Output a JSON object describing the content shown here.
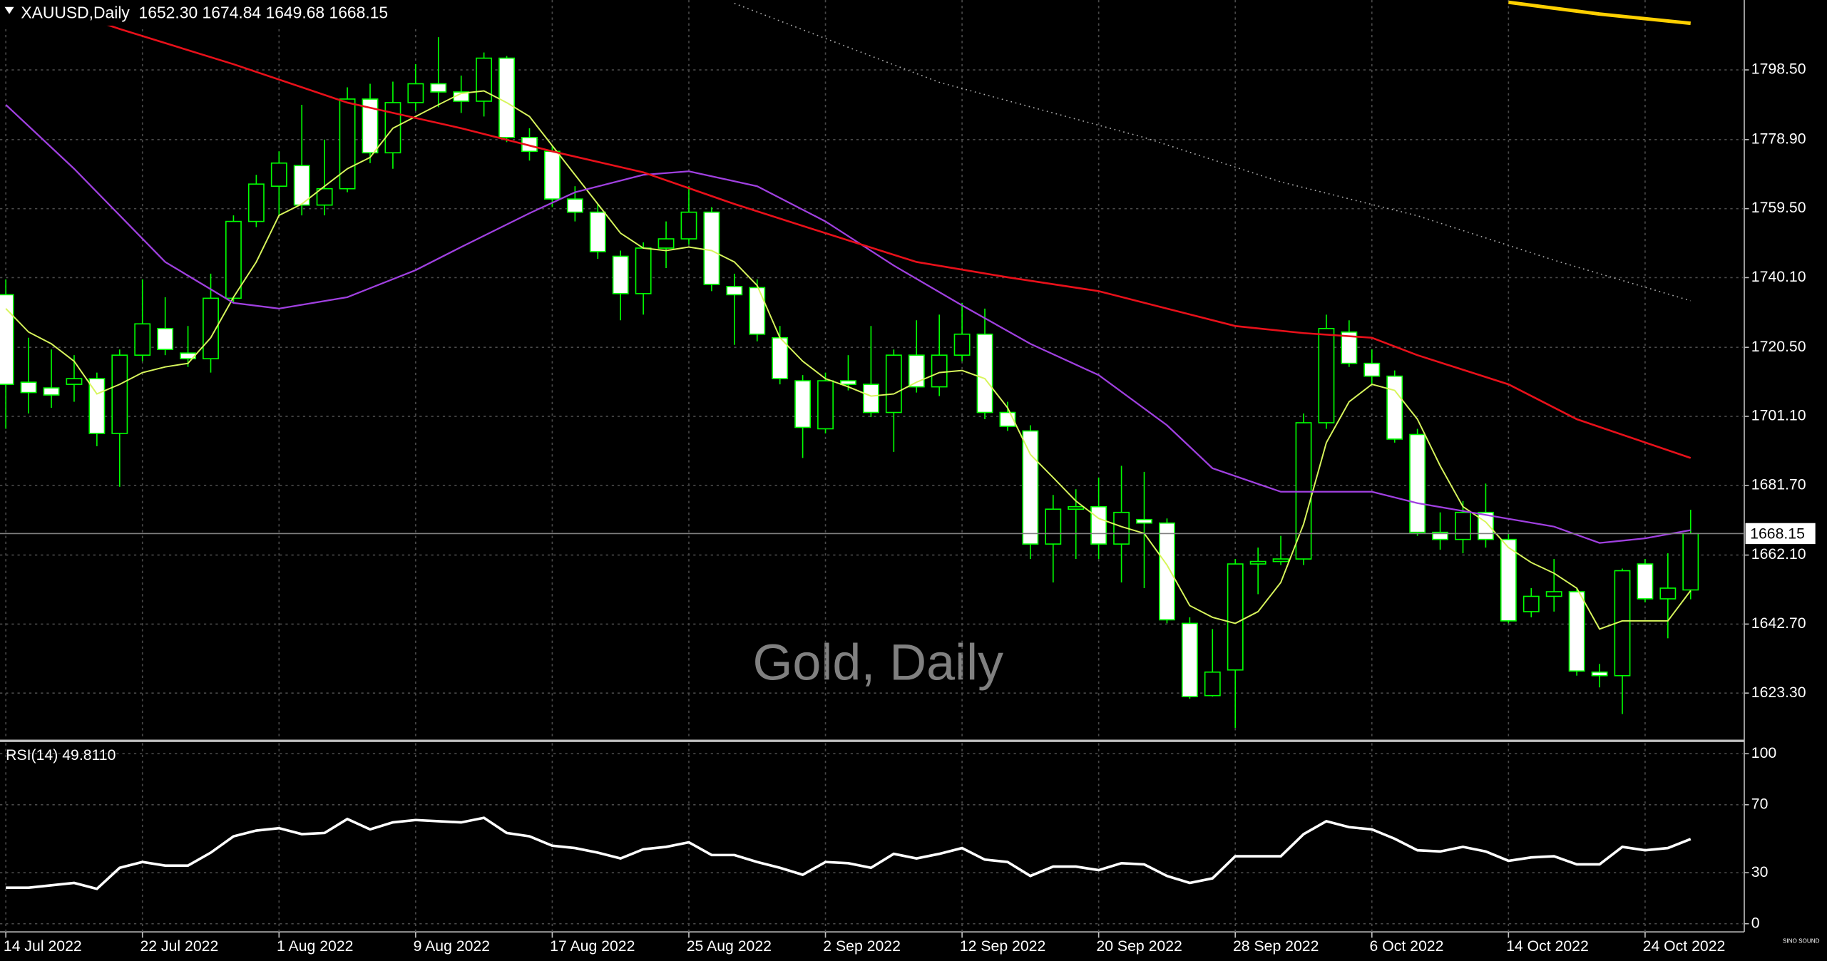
{
  "chart_data": [
    {
      "type": "candlestick",
      "title": "XAUUSD,Daily  1652.30 1674.84 1649.68 1668.15",
      "watermark": "Gold, Daily",
      "logo": "SINO SOUND",
      "categories": [
        "14 Jul 2022",
        null,
        null,
        null,
        null,
        null,
        "22 Jul 2022",
        null,
        null,
        null,
        null,
        null,
        "1 Aug 2022",
        null,
        null,
        null,
        null,
        null,
        "9 Aug 2022",
        null,
        null,
        null,
        null,
        null,
        "17 Aug 2022",
        null,
        null,
        null,
        null,
        null,
        "25 Aug 2022",
        null,
        null,
        null,
        null,
        null,
        "2 Sep 2022",
        null,
        null,
        null,
        null,
        null,
        "12 Sep 2022",
        null,
        null,
        null,
        null,
        null,
        "20 Sep 2022",
        null,
        null,
        null,
        null,
        null,
        "28 Sep 2022",
        null,
        null,
        null,
        null,
        null,
        "6 Oct 2022",
        null,
        null,
        null,
        null,
        null,
        "14 Oct 2022",
        null,
        null,
        null,
        null,
        null,
        "24 Oct 2022",
        null,
        null
      ],
      "ohlc": [
        [
          1735.3,
          1739.6,
          1697.6,
          1710.1
        ],
        [
          1710.7,
          1723.2,
          1701.9,
          1707.8
        ],
        [
          1709.1,
          1719.9,
          1703.5,
          1707.1
        ],
        [
          1710.1,
          1718.3,
          1705.2,
          1711.7
        ],
        [
          1711.7,
          1713.4,
          1692.7,
          1696.3
        ],
        [
          1696.3,
          1719.9,
          1681.3,
          1718.3
        ],
        [
          1718.3,
          1739.6,
          1716.6,
          1727.1
        ],
        [
          1725.8,
          1734.6,
          1718.3,
          1719.9
        ],
        [
          1718.9,
          1726.5,
          1715.0,
          1717.3
        ],
        [
          1717.3,
          1741.2,
          1713.4,
          1734.3
        ],
        [
          1734.3,
          1757.6,
          1733.0,
          1755.9
        ],
        [
          1755.9,
          1769.0,
          1754.3,
          1766.4
        ],
        [
          1765.8,
          1775.6,
          1757.6,
          1772.3
        ],
        [
          1771.6,
          1788.7,
          1757.6,
          1760.5
        ],
        [
          1760.5,
          1778.9,
          1757.6,
          1765.1
        ],
        [
          1765.1,
          1793.6,
          1764.1,
          1790.3
        ],
        [
          1790.3,
          1794.6,
          1772.3,
          1775.2
        ],
        [
          1775.2,
          1795.2,
          1770.7,
          1789.3
        ],
        [
          1789.3,
          1800.1,
          1787.0,
          1794.6
        ],
        [
          1794.6,
          1807.7,
          1788.0,
          1792.3
        ],
        [
          1792.3,
          1796.9,
          1786.4,
          1789.7
        ],
        [
          1789.7,
          1803.4,
          1785.4,
          1801.8
        ],
        [
          1801.8,
          1802.4,
          1778.2,
          1779.5
        ],
        [
          1779.5,
          1782.1,
          1773.0,
          1775.6
        ],
        [
          1775.6,
          1777.2,
          1759.9,
          1762.2
        ],
        [
          1762.2,
          1765.8,
          1755.9,
          1758.5
        ],
        [
          1758.5,
          1760.8,
          1745.4,
          1747.4
        ],
        [
          1746.1,
          1747.7,
          1728.1,
          1735.6
        ],
        [
          1735.6,
          1750.0,
          1729.7,
          1748.4
        ],
        [
          1748.4,
          1755.9,
          1742.8,
          1751.0
        ],
        [
          1751.0,
          1765.8,
          1749.4,
          1758.5
        ],
        [
          1758.5,
          1759.9,
          1736.3,
          1738.2
        ],
        [
          1737.6,
          1741.2,
          1721.2,
          1735.3
        ],
        [
          1737.3,
          1739.6,
          1722.2,
          1724.2
        ],
        [
          1723.2,
          1726.5,
          1710.1,
          1711.7
        ],
        [
          1711.1,
          1712.7,
          1689.4,
          1698.0
        ],
        [
          1697.6,
          1713.4,
          1696.3,
          1711.1
        ],
        [
          1711.1,
          1718.3,
          1708.4,
          1710.1
        ],
        [
          1710.1,
          1726.5,
          1700.9,
          1702.2
        ],
        [
          1702.2,
          1719.9,
          1691.1,
          1718.3
        ],
        [
          1718.3,
          1728.1,
          1707.8,
          1709.4
        ],
        [
          1709.4,
          1729.7,
          1706.8,
          1718.3
        ],
        [
          1718.3,
          1733.0,
          1716.6,
          1724.2
        ],
        [
          1724.2,
          1731.4,
          1700.3,
          1702.2
        ],
        [
          1702.2,
          1705.2,
          1697.0,
          1698.3
        ],
        [
          1697.0,
          1698.6,
          1661.0,
          1665.2
        ],
        [
          1665.2,
          1679.0,
          1654.4,
          1675.0
        ],
        [
          1675.0,
          1680.6,
          1661.0,
          1675.7
        ],
        [
          1675.7,
          1683.9,
          1661.0,
          1665.2
        ],
        [
          1665.2,
          1687.2,
          1654.4,
          1674.1
        ],
        [
          1672.1,
          1685.5,
          1652.8,
          1671.1
        ],
        [
          1671.1,
          1672.4,
          1642.9,
          1643.9
        ],
        [
          1642.9,
          1644.6,
          1621.7,
          1622.3
        ],
        [
          1622.6,
          1641.3,
          1622.3,
          1629.2
        ],
        [
          1629.8,
          1661.0,
          1613.5,
          1659.6
        ],
        [
          1659.6,
          1664.2,
          1651.1,
          1660.3
        ],
        [
          1660.3,
          1667.5,
          1659.3,
          1661.0
        ],
        [
          1661.0,
          1701.9,
          1659.3,
          1699.3
        ],
        [
          1699.3,
          1729.7,
          1697.6,
          1725.8
        ],
        [
          1724.8,
          1728.1,
          1715.0,
          1716.0
        ],
        [
          1716.0,
          1719.9,
          1710.1,
          1712.4
        ],
        [
          1712.4,
          1714.0,
          1693.7,
          1694.7
        ],
        [
          1696.0,
          1697.6,
          1667.5,
          1668.5
        ],
        [
          1668.5,
          1674.1,
          1663.6,
          1666.5
        ],
        [
          1666.5,
          1677.3,
          1662.6,
          1674.1
        ],
        [
          1674.1,
          1682.2,
          1664.2,
          1666.5
        ],
        [
          1666.5,
          1668.2,
          1642.9,
          1643.6
        ],
        [
          1646.2,
          1652.8,
          1644.6,
          1650.5
        ],
        [
          1650.5,
          1661.0,
          1646.2,
          1651.8
        ],
        [
          1651.8,
          1652.8,
          1628.2,
          1629.5
        ],
        [
          1629.2,
          1631.5,
          1624.9,
          1628.2
        ],
        [
          1628.2,
          1658.3,
          1617.4,
          1657.7
        ],
        [
          1659.6,
          1661.0,
          1648.8,
          1649.8
        ],
        [
          1649.8,
          1662.6,
          1638.7,
          1652.8
        ],
        [
          1652.3,
          1674.84,
          1649.68,
          1668.15
        ]
      ],
      "up_color": "#00ff00",
      "up_fill": "#000000",
      "down_fill": "#ffffff",
      "overlays": [
        {
          "color": "#d8f55c",
          "width": 1.2,
          "values": [
            1731.4,
            1724.8,
            1721.5,
            1716.6,
            1707.4,
            1710.1,
            1713.4,
            1715.0,
            1716.0,
            1723.2,
            1734.6,
            1744.5,
            1757.6,
            1760.8,
            1765.8,
            1770.7,
            1773.9,
            1782.1,
            1785.4,
            1788.7,
            1791.9,
            1792.6,
            1789.3,
            1785.4,
            1777.2,
            1769.0,
            1760.8,
            1752.6,
            1748.4,
            1747.7,
            1748.7,
            1747.7,
            1744.5,
            1737.9,
            1723.2,
            1716.6,
            1711.7,
            1709.4,
            1706.8,
            1707.4,
            1710.7,
            1713.4,
            1714.0,
            1711.7,
            1703.5,
            1690.4,
            1683.9,
            1677.3,
            1672.4,
            1670.1,
            1668.2,
            1659.3,
            1647.9,
            1644.6,
            1642.9,
            1646.2,
            1654.4,
            1670.8,
            1693.7,
            1705.2,
            1710.1,
            1708.4,
            1700.3,
            1687.2,
            1675.7,
            1671.4,
            1664.2,
            1660.0,
            1657.0,
            1652.8,
            1641.3,
            1643.6,
            1643.6,
            1643.6,
            1652.1
          ]
        },
        {
          "color": "#a040e0",
          "width": 1.4,
          "x": [
            0,
            3,
            5,
            7,
            10,
            12,
            15,
            18,
            20,
            23,
            25,
            28,
            30,
            33,
            36,
            39,
            42,
            45,
            48,
            51,
            53,
            56,
            60,
            62,
            65,
            68,
            70,
            72,
            74
          ],
          "values": [
            1788.7,
            1770.7,
            1757.6,
            1744.5,
            1733.0,
            1731.4,
            1734.6,
            1742.2,
            1748.7,
            1758.2,
            1764.1,
            1769.0,
            1770.0,
            1765.8,
            1755.9,
            1743.5,
            1732.3,
            1721.5,
            1712.7,
            1698.6,
            1686.5,
            1679.9,
            1679.9,
            1676.7,
            1673.4,
            1670.1,
            1665.5,
            1666.8,
            1669.1
          ]
        },
        {
          "color": "#e8101a",
          "width": 1.6,
          "x": [
            2,
            5,
            10,
            15,
            20,
            24,
            28,
            32,
            36,
            40,
            44,
            48,
            51,
            54,
            57,
            60,
            62,
            66,
            69,
            74
          ],
          "values": [
            1816.5,
            1810.0,
            1800.1,
            1789.3,
            1782.1,
            1775.6,
            1769.7,
            1760.8,
            1752.6,
            1744.5,
            1740.2,
            1736.3,
            1731.4,
            1726.5,
            1724.5,
            1723.2,
            1718.3,
            1710.1,
            1700.3,
            1689.4
          ]
        },
        {
          "color": "#b0b0b0",
          "width": 1,
          "dash": true,
          "x": [
            32,
            41,
            50,
            56,
            62,
            68,
            74
          ],
          "values": [
            1817.2,
            1795.0,
            1779.5,
            1767.0,
            1757.5,
            1745.0,
            1733.6
          ]
        },
        {
          "color": "#ffd000",
          "width": 3,
          "x": [
            66,
            70,
            74
          ],
          "values": [
            1817.5,
            1814.2,
            1811.6
          ]
        }
      ],
      "current_price": {
        "value": 1668.15,
        "label": "1668.15"
      },
      "ylim": [
        1610.2,
        1818.15
      ],
      "yticks": [
        {
          "value": 1798.5,
          "label": "1798.50"
        },
        {
          "value": 1778.9,
          "label": "1778.90"
        },
        {
          "value": 1759.5,
          "label": "1759.50"
        },
        {
          "value": 1740.1,
          "label": "1740.10"
        },
        {
          "value": 1720.5,
          "label": "1720.50"
        },
        {
          "value": 1701.1,
          "label": "1701.10"
        },
        {
          "value": 1681.7,
          "label": "1681.70"
        },
        {
          "value": 1662.1,
          "label": "1662.10"
        },
        {
          "value": 1642.7,
          "label": "1642.70"
        },
        {
          "value": 1623.3,
          "label": "1623.30"
        }
      ],
      "grid": true
    },
    {
      "type": "line",
      "title": "RSI(14) 49.8110",
      "color": "#ffffff",
      "values": [
        21.2,
        21.2,
        22.6,
        24.0,
        20.5,
        32.9,
        36.3,
        34.2,
        34.2,
        41.8,
        51.4,
        54.8,
        56.2,
        52.7,
        53.4,
        61.6,
        55.5,
        59.6,
        61.0,
        60.3,
        59.6,
        62.3,
        53.4,
        51.4,
        45.9,
        44.5,
        41.8,
        38.4,
        43.8,
        45.2,
        47.9,
        40.4,
        40.4,
        36.3,
        32.9,
        28.8,
        36.3,
        35.6,
        32.9,
        41.1,
        38.4,
        41.1,
        44.5,
        37.7,
        36.3,
        28.1,
        33.6,
        33.6,
        31.5,
        35.6,
        34.9,
        28.1,
        24.0,
        26.7,
        39.7,
        39.7,
        39.7,
        52.7,
        60.3,
        56.8,
        55.5,
        50.0,
        43.2,
        42.5,
        45.2,
        42.5,
        37.0,
        39.0,
        39.7,
        34.9,
        34.9,
        45.2,
        43.2,
        44.5,
        49.811
      ],
      "ylim": [
        -4.8,
        106.2
      ],
      "yticks": [
        100,
        70,
        30,
        0
      ],
      "grid": true
    }
  ]
}
